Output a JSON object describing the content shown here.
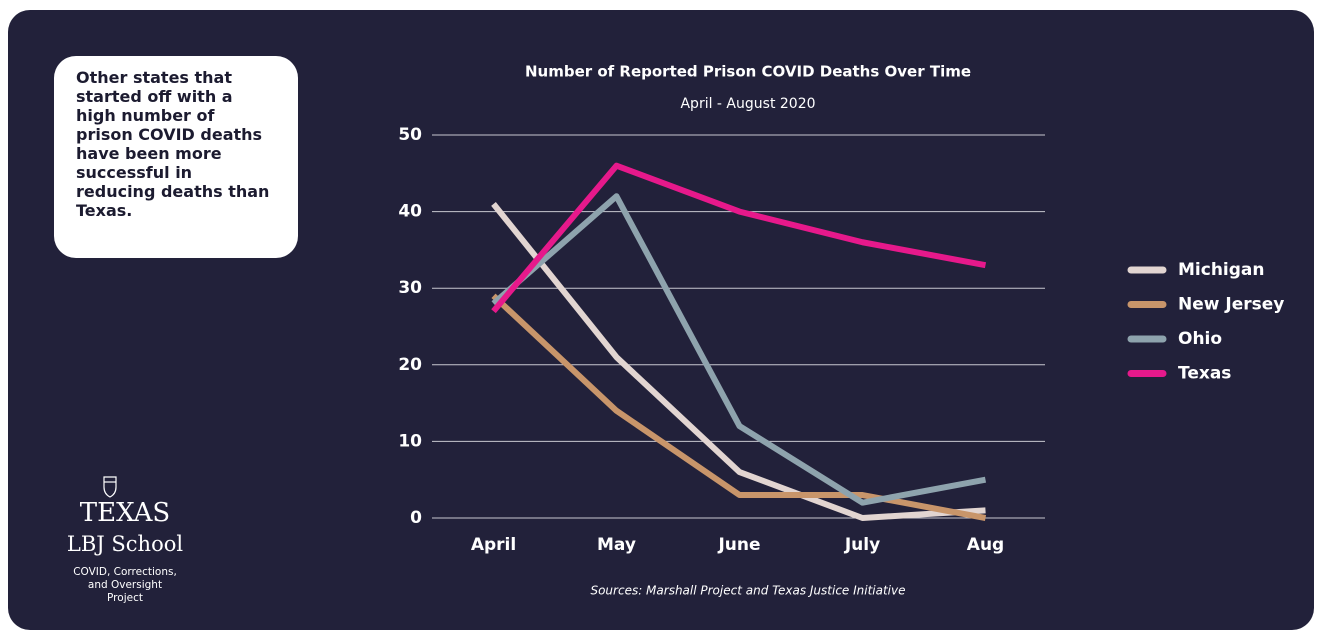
{
  "chart_data": {
    "type": "line",
    "title": "Number of Reported Prison COVID Deaths Over Time",
    "subtitle": "April - August 2020",
    "source": "Sources: Marshall Project and Texas Justice Initiative",
    "categories": [
      "April",
      "May",
      "June",
      "July",
      "Aug"
    ],
    "series": [
      {
        "name": "Michigan",
        "color": "#e2d5d1",
        "values": [
          41,
          21,
          6,
          0,
          1
        ]
      },
      {
        "name": "New Jersey",
        "color": "#c8956a",
        "values": [
          29,
          14,
          3,
          3,
          0
        ]
      },
      {
        "name": "Ohio",
        "color": "#8ea3ad",
        "values": [
          28,
          42,
          12,
          2,
          5
        ]
      },
      {
        "name": "Texas",
        "color": "#e6198b",
        "values": [
          27,
          46,
          40,
          36,
          33
        ]
      }
    ],
    "ylim": [
      0,
      50
    ],
    "yticks": [
      0,
      10,
      20,
      30,
      40,
      50
    ],
    "grid": true,
    "legend": "right"
  },
  "annotation": "Other states that started off with a high number of prison COVID deaths have been more successful in reducing deaths than Texas.",
  "logo": {
    "name": "TEXAS",
    "school": "LBJ School",
    "project": "COVID, Corrections, and Oversight Project"
  }
}
